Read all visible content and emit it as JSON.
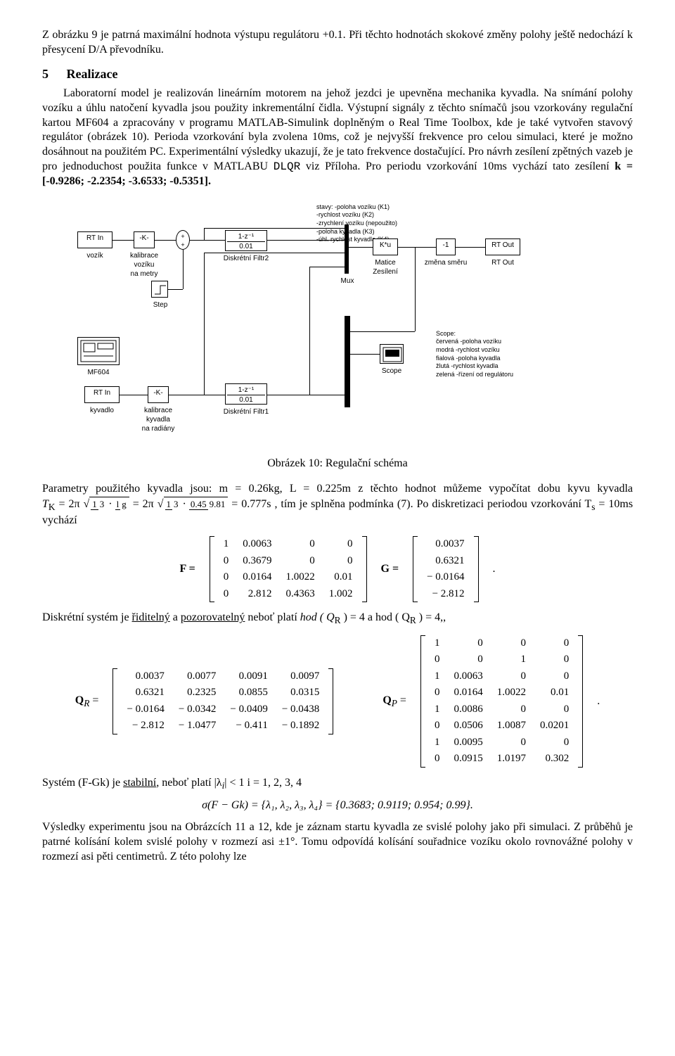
{
  "para1": "Z obrázku 9 je patrná maximální hodnota výstupu regulátoru +0.1. Při těchto hodnotách skokové změny polohy ještě nedochází k přesycení D/A převodníku.",
  "section": {
    "num": "5",
    "title": "Realizace"
  },
  "para2a": "Laboratorní model je realizován lineárním motorem na jehož jezdci je upevněna mechanika kyvadla. Na snímání polohy vozíku a úhlu natočení kyvadla jsou použity inkrementální čidla. Výstupní signály z těchto snímačů jsou vzorkovány regulační kartou MF604 a zpracovány v programu MATLAB-Simulink doplněným o Real Time Toolbox, kde je také vytvořen stavový regulátor (obrázek 10). Perioda vzorkování byla zvolena 10ms, což je nejvyšší frekvence pro celou simulaci, které je možno dosáhnout na použitém PC. Experimentální výsledky ukazují, že je tato frekvence dostačující. Pro návrh zesílení zpětných vazeb je pro jednoduchost použita funkce v MATLABU ",
  "dlqr": "DLQR",
  "para2b": " viz Příloha. Pro periodu vzorkování 10ms vychází tato zesílení ",
  "kvec": "k = [-0.9286; -2.2354; -3.6533; -0.5351].",
  "diagram": {
    "rt_in": "RT In",
    "vozik": "vozík",
    "kalibrace_voziku": "kalibrace\nvozíku\nna metry",
    "K": "-K-",
    "step": "Step",
    "filtr2_tf": "1-z⁻¹",
    "filtr2_den": "0.01",
    "filtr2_lbl": "Diskrétní Filtr2",
    "stavy": "stavy: -poloha vozíku (K1)\n         -rychlost vozíku (K2)\n         -zrychlení vozíku (nepoužito)\n         -poloha kyvadla (K3)\n         -úhl. rychlost kyvadla (K4)",
    "mux": "Mux",
    "ku": "K*u",
    "matice": "Matice\nZesílení",
    "neg1": "-1",
    "zmena_smeru": "změna směru",
    "rt_out": "RT Out",
    "rt_out_lbl": "RT Out",
    "mf604": "MF604",
    "rt_in2": "RT In",
    "kyvadlo": "kyvadlo",
    "kalibrace_kyvadla": "kalibrace\nkyvadla\nna radiány",
    "filtr1_tf": "1-z⁻¹",
    "filtr1_den": "0.01",
    "filtr1_lbl": "Diskrétní Filtr1",
    "scope": "Scope",
    "scope_legend": "Scope:\nčervená -poloha vozíku\nmodrá -rychlost vozíku\nfialová -poloha kyvadla\nžlutá -rychlost kyvadla\nzelená -řízení od regulátoru"
  },
  "caption": "Obrázek 10: Regulační schéma",
  "para3a": "Parametry použitého kyvadla jsou: m = 0.26kg, L = 0.225m z těchto hodnot můžeme vypočítat dobu kyvu kyvadla ",
  "para3b": ", tím je splněna podmínka (7). Po diskretizaci periodou vzorkování T",
  "para3c": " = 10ms vychází",
  "Tk_eq": {
    "lhs": "T",
    "sub": "K",
    "eq": "= 2π",
    "f1n": "1",
    "f1d": "3",
    "dot1": "·",
    "f2n": "l",
    "f2d": "g",
    "eq2": "= 2π",
    "f3n": "1",
    "f3d": "3",
    "dot2": "·",
    "f4n": "0.45",
    "f4d": "9.81",
    "res": "= 0.777s"
  },
  "F_matrix": [
    [
      "1",
      "0.0063",
      "0",
      "0"
    ],
    [
      "0",
      "0.3679",
      "0",
      "0"
    ],
    [
      "0",
      "0.0164",
      "1.0022",
      "0.01"
    ],
    [
      "0",
      "2.812",
      "0.4363",
      "1.002"
    ]
  ],
  "G_matrix": [
    [
      "0.0037"
    ],
    [
      "0.6321"
    ],
    [
      "− 0.0164"
    ],
    [
      "− 2.812"
    ]
  ],
  "para4a": "Diskrétní systém je ",
  "para4_r": "řiditelný",
  "para4b": " a ",
  "para4_p": "pozorovatelný",
  "para4c": " neboť platí ",
  "hod1": "hod ( Q",
  "hod_r": "R",
  "hod2": " ) = 4 a hod ( Q",
  "hod_rr": "R",
  "hod3": " ) = 4,,",
  "QR_matrix": [
    [
      "0.0037",
      "0.0077",
      "0.0091",
      "0.0097"
    ],
    [
      "0.6321",
      "0.2325",
      "0.0855",
      "0.0315"
    ],
    [
      "− 0.0164",
      "− 0.0342",
      "− 0.0409",
      "− 0.0438"
    ],
    [
      "− 2.812",
      "− 1.0477",
      "− 0.411",
      "− 0.1892"
    ]
  ],
  "QP_matrix": [
    [
      "1",
      "0",
      "0",
      "0"
    ],
    [
      "0",
      "0",
      "1",
      "0"
    ],
    [
      "1",
      "0.0063",
      "0",
      "0"
    ],
    [
      "0",
      "0.0164",
      "1.0022",
      "0.01"
    ],
    [
      "1",
      "0.0086",
      "0",
      "0"
    ],
    [
      "0",
      "0.0506",
      "1.0087",
      "0.0201"
    ],
    [
      "1",
      "0.0095",
      "0",
      "0"
    ],
    [
      "0",
      "0.0915",
      "1.0197",
      "0.302"
    ]
  ],
  "para5a": "Systém (F-Gk) je ",
  "para5_s": "stabilní",
  "para5b": ", neboť platí   |λ",
  "para5c": "| < 1  i = 1, 2, 3, 4",
  "sigma_eq": "σ(F − Gk) = {λ₁, λ₂, λ₃, λ₄} = {0.3683; 0.9119; 0.954; 0.99}.",
  "para6": "Výsledky experimentu jsou na Obrázcích 11 a 12, kde je záznam startu kyvadla ze svislé polohy jako při simulaci. Z průběhů je patrné kolísání kolem svislé polohy v rozmezí asi ±1°. Tomu odpovídá kolísání souřadnice vozíku okolo rovnovážné polohy v rozmezí asi pěti centimetrů. Z této polohy lze",
  "labels": {
    "F": "F =",
    "G": "G =",
    "QR": "Q",
    "QR_sub": "R",
    "QP": "Q",
    "QP_sub": "P",
    "eq": "=",
    "dot": ".",
    "s_sub": "s",
    "i_sub": "i"
  }
}
